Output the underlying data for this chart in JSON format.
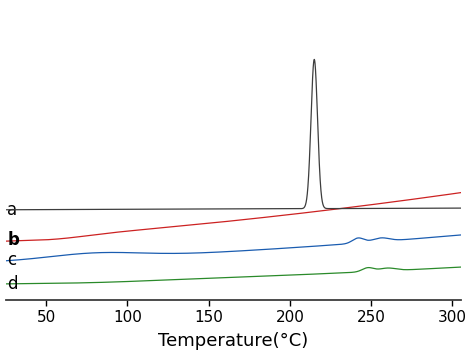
{
  "title": "",
  "xlabel": "Temperature(°C)",
  "xlim": [
    25,
    305
  ],
  "ylim": [
    -1.0,
    6.5
  ],
  "xticks": [
    50,
    100,
    150,
    200,
    250,
    300
  ],
  "colors": {
    "a": "#3d3d3d",
    "b": "#cc2222",
    "c": "#1a5cb0",
    "d": "#2a8a2a"
  },
  "background_color": "#ffffff",
  "label_fontsize": 12,
  "xlabel_fontsize": 13,
  "tick_fontsize": 11
}
